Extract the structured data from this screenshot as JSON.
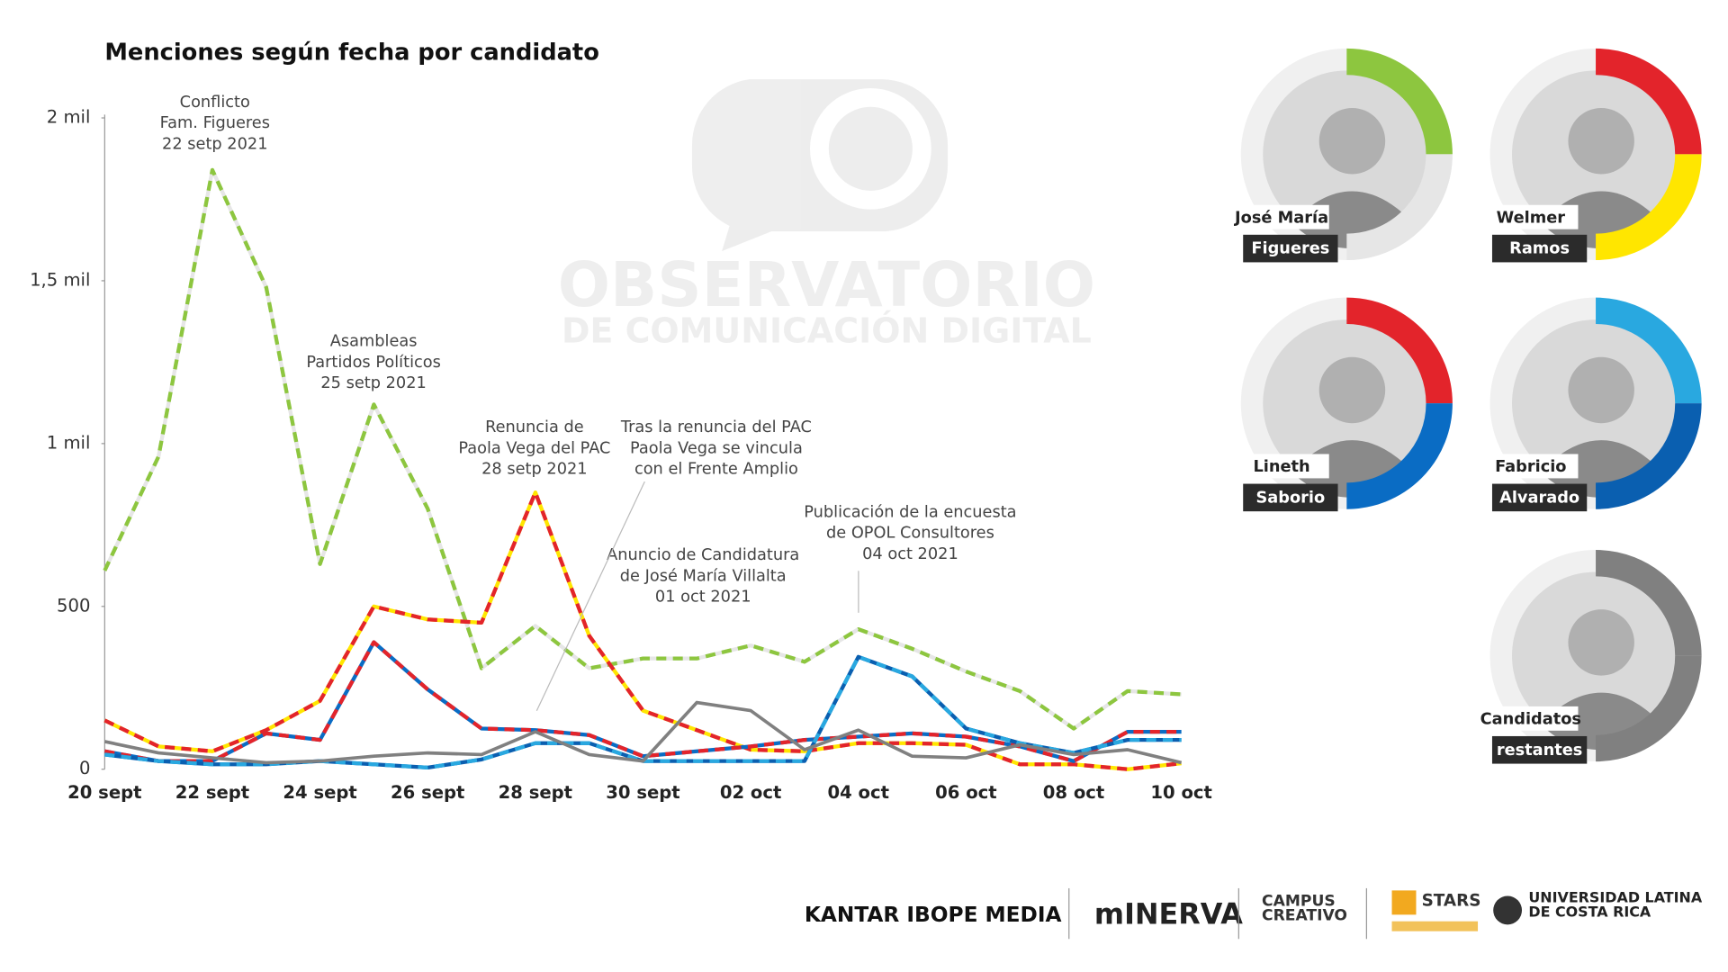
{
  "chart_data": {
    "type": "line",
    "title": "Menciones según fecha por candidato",
    "categories": [
      "20 sept",
      null,
      "22 sept",
      null,
      "24 sept",
      null,
      "26 sept",
      null,
      "28 sept",
      null,
      "30 sept",
      null,
      "02 oct",
      null,
      "04 oct",
      null,
      "06 oct",
      null,
      "08 oct",
      null,
      "10 oct"
    ],
    "ylim": [
      0,
      2000
    ],
    "yticks": [
      0,
      500,
      {
        "value": 1000,
        "label": "1 mil"
      },
      {
        "value": 1500,
        "label": "1,5 mil"
      },
      {
        "value": 2000,
        "label": "2 mil"
      }
    ],
    "grid": false,
    "series": [
      {
        "name": [
          "José María",
          "Figueres"
        ],
        "color": "#8dc63f",
        "dash_color": "#e6e6e6",
        "values": [
          610,
          960,
          1840,
          1480,
          630,
          1120,
          800,
          310,
          440,
          310,
          340,
          340,
          380,
          330,
          430,
          370,
          300,
          240,
          125,
          240,
          230
        ]
      },
      {
        "name": [
          "Welmer",
          "Ramos"
        ],
        "color": "#e3242b",
        "dash_color": "#ffe600",
        "values": [
          150,
          70,
          55,
          120,
          210,
          500,
          460,
          450,
          850,
          410,
          180,
          120,
          60,
          55,
          80,
          80,
          75,
          15,
          15,
          0,
          18
        ]
      },
      {
        "name": [
          "Lineth",
          "Saborio"
        ],
        "color": "#e3242b",
        "dash_color": "#0a6cc4",
        "values": [
          55,
          25,
          25,
          110,
          90,
          390,
          245,
          125,
          120,
          105,
          40,
          55,
          70,
          90,
          100,
          110,
          100,
          70,
          25,
          115,
          115
        ]
      },
      {
        "name": [
          "Fabricio",
          "Alvarado"
        ],
        "color": "#29a8e0",
        "dash_color": "#0a5fb0",
        "values": [
          45,
          25,
          15,
          15,
          25,
          15,
          5,
          30,
          80,
          80,
          25,
          25,
          25,
          25,
          345,
          285,
          125,
          80,
          50,
          90,
          90
        ]
      },
      {
        "name": [
          "Candidatos",
          "restantes"
        ],
        "color": "#808080",
        "values": [
          85,
          50,
          35,
          20,
          25,
          40,
          50,
          45,
          115,
          45,
          25,
          205,
          180,
          60,
          120,
          40,
          35,
          75,
          45,
          60,
          20
        ]
      }
    ],
    "annotations": [
      [
        "Conflicto",
        "Fam. Figueres",
        "22 setp 2021"
      ],
      [
        "Asambleas",
        "Partidos Políticos",
        "25 setp 2021"
      ],
      [
        "Renuncia de",
        "Paola Vega del PAC",
        "28 setp 2021"
      ],
      [
        "Tras la renuncia del PAC",
        "Paola Vega se vincula",
        "con el Frente Amplio"
      ],
      [
        "Anuncio de Candidatura",
        "de José María Villalta",
        "01 oct 2021"
      ],
      [
        "Publicación de la encuesta",
        "de OPOL Consultores",
        "04 oct 2021"
      ]
    ]
  },
  "watermark": [
    "OBSERVATORIO",
    "DE COMUNICACIÓN DIGITAL"
  ],
  "footer": [
    "KANTAR IBOPE MEDIA",
    "mINERVA",
    "CAMPUS",
    "CREATIVO",
    "STARS",
    "UNIVERSIDAD LATINA",
    "DE COSTA RICA"
  ]
}
